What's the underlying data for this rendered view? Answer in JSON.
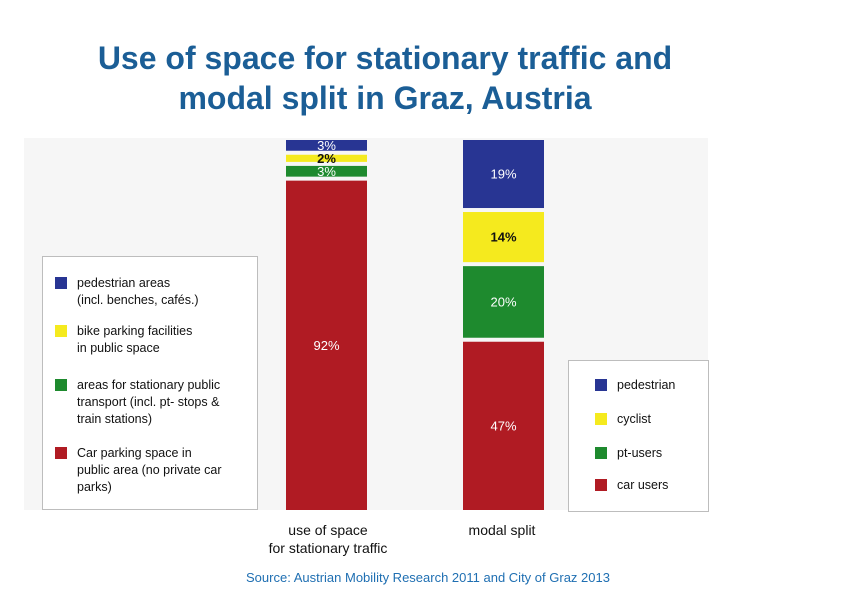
{
  "title": {
    "line1": "Use of space for stationary traffic and",
    "line2": "modal split in Graz, Austria"
  },
  "source": "Source: Austrian Mobility Research 2011 and City of Graz 2013",
  "colors": {
    "blue": "#283593",
    "yellow": "#f5ea1e",
    "green": "#1e8a2e",
    "red": "#b01b23"
  },
  "chart_data": {
    "type": "bar",
    "stacked": true,
    "categories": [
      "use of space\nfor stationary traffic",
      "modal split"
    ],
    "values_unit": "%",
    "ylim": [
      0,
      100
    ],
    "grid": false,
    "bars": [
      {
        "category": "use of space\nfor stationary traffic",
        "segments": [
          {
            "name": "pedestrian areas (incl. benches, cafés.)",
            "value": 3,
            "label": "3%",
            "color": "#283593"
          },
          {
            "name": "bike parking facilities in public space",
            "value": 2,
            "label": "2%",
            "color": "#f5ea1e"
          },
          {
            "name": "areas for stationary public transport (incl. pt- stops & train stations)",
            "value": 3,
            "label": "3%",
            "color": "#1e8a2e"
          },
          {
            "name": "Car parking space in public area (no private car parks)",
            "value": 92,
            "label": "92%",
            "color": "#b01b23"
          }
        ]
      },
      {
        "category": "modal split",
        "segments": [
          {
            "name": "pedestrian",
            "value": 19,
            "label": "19%",
            "color": "#283593"
          },
          {
            "name": "cyclist",
            "value": 14,
            "label": "14%",
            "color": "#f5ea1e"
          },
          {
            "name": "pt-users",
            "value": 20,
            "label": "20%",
            "color": "#1e8a2e"
          },
          {
            "name": "car users",
            "value": 47,
            "label": "47%",
            "color": "#b01b23"
          }
        ]
      }
    ],
    "legends": [
      {
        "placement": "left",
        "entries": [
          {
            "text": "pedestrian areas\n(incl. benches, cafés.)",
            "color": "#283593"
          },
          {
            "text": "bike parking facilities\nin public space",
            "color": "#f5ea1e"
          },
          {
            "text": "areas for stationary public\ntransport (incl. pt- stops &\ntrain stations)",
            "color": "#1e8a2e"
          },
          {
            "text": "Car parking space in\npublic area (no private car\nparks)",
            "color": "#b01b23"
          }
        ]
      },
      {
        "placement": "bottom-right",
        "entries": [
          {
            "text": "pedestrian",
            "color": "#283593"
          },
          {
            "text": "cyclist",
            "color": "#f5ea1e"
          },
          {
            "text": "pt-users",
            "color": "#1e8a2e"
          },
          {
            "text": "car users",
            "color": "#b01b23"
          }
        ]
      }
    ]
  }
}
